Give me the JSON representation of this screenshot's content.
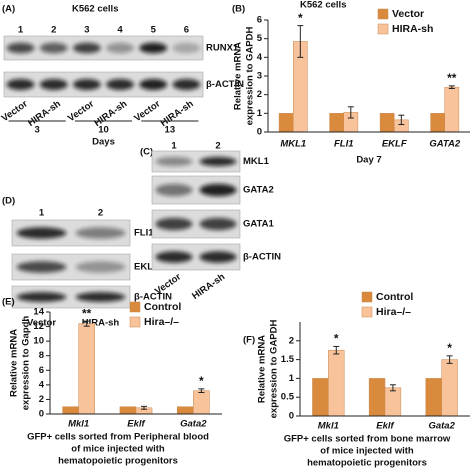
{
  "panels": {
    "A": {
      "label": "(A)",
      "title": "K562 cells",
      "lanes": [
        "1",
        "2",
        "3",
        "4",
        "5",
        "6"
      ],
      "proteins": [
        "RUNX1",
        "β-ACTIN"
      ],
      "conditions": [
        "Vector",
        "HIRA-sh",
        "Vector",
        "HIRA-sh",
        "Vector",
        "HIRA-sh"
      ],
      "days": [
        "3",
        "10",
        "13"
      ],
      "days_label": "Days"
    },
    "D": {
      "label": "(D)",
      "lanes": [
        "1",
        "2"
      ],
      "proteins": [
        "FLI1",
        "EKLF",
        "β-ACTIN"
      ],
      "conditions": [
        "Vector",
        "HIRA-sh"
      ]
    },
    "C": {
      "label": "(C)",
      "lanes": [
        "1",
        "2"
      ],
      "proteins": [
        "MKL1",
        "GATA2",
        "GATA1",
        "β-ACTIN"
      ],
      "conditions": [
        "Vector",
        "HIRA-sh"
      ]
    }
  },
  "chart_data": [
    {
      "type": "bar",
      "panel_label": "(B)",
      "title": "K562 cells",
      "ylabel": [
        "Relative mRNA",
        "expression to GAPDH"
      ],
      "xlabel": [
        "Day 7"
      ],
      "categories": [
        "MKL1",
        "FLI1",
        "EKLF",
        "GATA2"
      ],
      "series": [
        {
          "name": "Vector",
          "color": "#d98a3d",
          "values": [
            1,
            1,
            1,
            1
          ]
        },
        {
          "name": "HIRA-sh",
          "color": "#f8c29a",
          "values": [
            4.85,
            1.05,
            0.65,
            2.4
          ],
          "errors": [
            0.85,
            0.3,
            0.25,
            0.07
          ]
        }
      ],
      "annotations": [
        {
          "category": "MKL1",
          "text": "*"
        },
        {
          "category": "GATA2",
          "text": "**"
        }
      ],
      "ylim": [
        0,
        6
      ],
      "yticks": [
        0,
        1,
        2,
        3,
        4,
        5,
        6
      ]
    },
    {
      "type": "bar",
      "panel_label": "(E)",
      "ylabel": [
        "Relative mRNA",
        "expression to Gapdh"
      ],
      "xlabel": [
        "GFP+ cells sorted from Peripheral blood",
        "of mice injected with",
        "hematopoietic progenitors"
      ],
      "categories": [
        "Mkl1",
        "Eklf",
        "Gata2"
      ],
      "series": [
        {
          "name": "Control",
          "color": "#d98a3d",
          "values": [
            1,
            1,
            1
          ]
        },
        {
          "name": "Hira–/–",
          "color": "#f8c29a",
          "values": [
            12.4,
            0.85,
            3.2
          ],
          "errors": [
            0.35,
            0.2,
            0.25
          ]
        }
      ],
      "annotations": [
        {
          "category": "Mkl1",
          "text": "**"
        },
        {
          "category": "Gata2",
          "text": "*"
        }
      ],
      "ylim": [
        0,
        14
      ],
      "yticks": [
        0,
        2,
        4,
        6,
        8,
        10,
        12,
        14
      ]
    },
    {
      "type": "bar",
      "panel_label": "(F)",
      "ylabel": [
        "Relative mRNA",
        "expression  to GAPDH"
      ],
      "xlabel": [
        "GFP+ cells sorted from bone marrow",
        "of mice injected with",
        "hematopoietic progenitors"
      ],
      "categories": [
        "Mkl1",
        "Eklf",
        "Gata2"
      ],
      "series": [
        {
          "name": "Control",
          "color": "#d98a3d",
          "values": [
            1,
            1,
            1
          ]
        },
        {
          "name": "Hira–/–",
          "color": "#f8c29a",
          "values": [
            1.75,
            0.75,
            1.5
          ],
          "errors": [
            0.1,
            0.08,
            0.1
          ]
        }
      ],
      "annotations": [
        {
          "category": "Mkl1",
          "text": "*"
        },
        {
          "category": "Gata2",
          "text": "*"
        }
      ],
      "ylim": [
        0,
        2.5
      ],
      "yticks": [
        0,
        0.5,
        1,
        1.5,
        2
      ]
    }
  ]
}
